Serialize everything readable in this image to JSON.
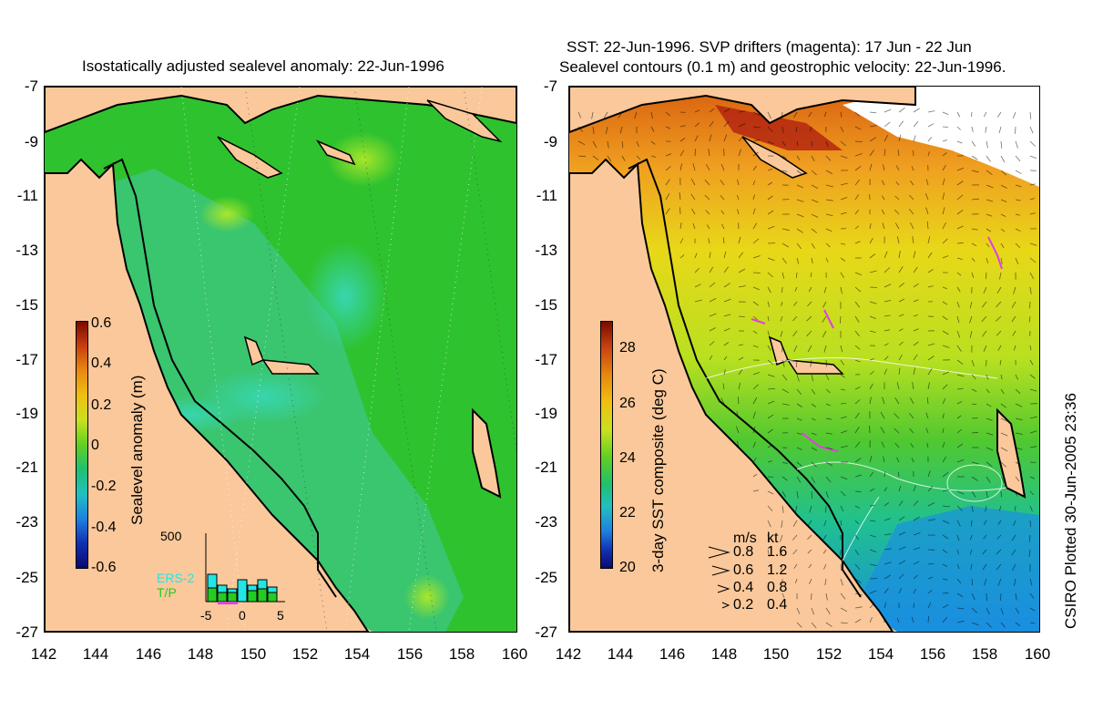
{
  "left_panel": {
    "title": "Isostatically adjusted sealevel anomaly: 22-Jun-1996",
    "colorbar_label": "Sealevel anomaly (m)",
    "colorbar_ticks": [
      "0.6",
      "0.4",
      "0.2",
      "0",
      "-0.2",
      "-0.4",
      "-0.6"
    ],
    "inset": {
      "y_tick": "500",
      "x_ticks": [
        "-5",
        "0",
        "5"
      ],
      "series": [
        "ERS-2",
        "T/P"
      ],
      "colors": {
        "ERS-2": "#22e5e5",
        "T/P": "#22cc22"
      }
    }
  },
  "right_panel": {
    "title_line1": "SST: 22-Jun-1996. SVP drifters (magenta): 17 Jun - 22 Jun",
    "title_line2": "Sealevel contours (0.1 m) and geostrophic velocity: 22-Jun-1996.",
    "colorbar_label": "3-day SST composite (deg C)",
    "colorbar_ticks": [
      "28",
      "26",
      "24",
      "22",
      "20"
    ],
    "velocity_legend": {
      "headers": [
        "m/s",
        "kt"
      ],
      "rows": [
        {
          "ms": "0.8",
          "kt": "1.6"
        },
        {
          "ms": "0.6",
          "kt": "1.2"
        },
        {
          "ms": "0.4",
          "kt": "0.8"
        },
        {
          "ms": "0.2",
          "kt": "0.4"
        }
      ]
    }
  },
  "y_axis_ticks": [
    "-7",
    "-9",
    "-11",
    "-13",
    "-15",
    "-17",
    "-19",
    "-21",
    "-23",
    "-25",
    "-27"
  ],
  "x_axis_ticks": [
    "142",
    "144",
    "146",
    "148",
    "150",
    "152",
    "154",
    "156",
    "158",
    "160"
  ],
  "credit": "CSIRO Plotted 30-Jun-2005 23:36",
  "colors": {
    "land": "#fac89a",
    "sea_left": "#2fc22f",
    "sea_right_warm": "#f0a020",
    "coast": "#000000"
  }
}
